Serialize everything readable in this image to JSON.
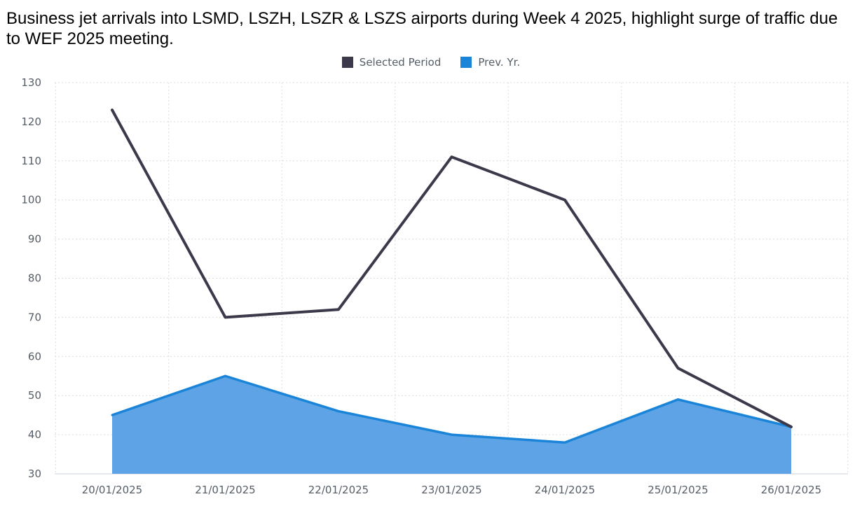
{
  "chart_data": {
    "type": "area",
    "title": "Business jet arrivals into LSMD, LSZH, LSZR & LSZS airports during Week 4 2025, highlight surge of traffic due to WEF 2025 meeting.",
    "xlabel": "",
    "ylabel": "",
    "categories": [
      "20/01/2025",
      "21/01/2025",
      "22/01/2025",
      "23/01/2025",
      "24/01/2025",
      "25/01/2025",
      "26/01/2025"
    ],
    "ylim": [
      30,
      130
    ],
    "yticks": [
      30,
      40,
      50,
      60,
      70,
      80,
      90,
      100,
      110,
      120,
      130
    ],
    "grid": true,
    "legend_position": "top-center",
    "series": [
      {
        "name": "Selected Period",
        "kind": "line",
        "color": "#3c3a4a",
        "values": [
          123,
          70,
          72,
          111,
          100,
          57,
          42
        ]
      },
      {
        "name": "Prev. Yr.",
        "kind": "area",
        "color": "#1a84d8",
        "fill": "#5ea3e5",
        "values": [
          45,
          55,
          46,
          40,
          38,
          49,
          42
        ]
      }
    ]
  }
}
